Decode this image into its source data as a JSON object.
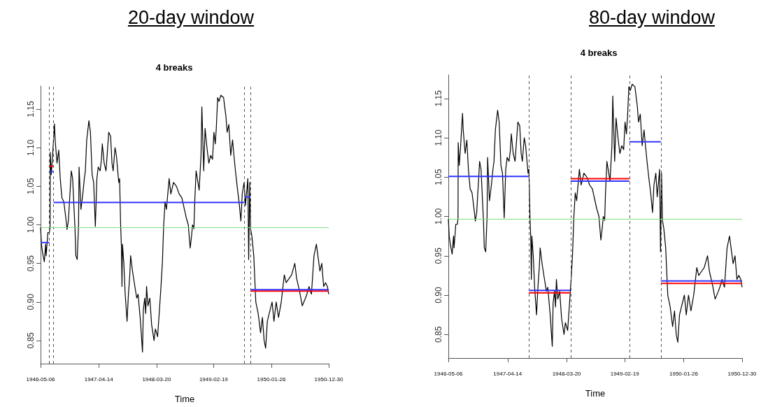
{
  "chart_data": [
    {
      "type": "line",
      "title": "20-day window",
      "subtitle": "4 breaks",
      "xlabel": "Time",
      "xlim": [
        "1946-05-06",
        "1950-12-30"
      ],
      "xticks": [
        "1946-05-06",
        "1947-04-14",
        "1948-03-20",
        "1949-02-19",
        "1950-01-26",
        "1950-12-30"
      ],
      "ylim": [
        0.82,
        1.18
      ],
      "yticks": [
        {
          "value": 0.85,
          "label": "0.85"
        },
        {
          "value": 0.9,
          "label": "0.90"
        },
        {
          "value": 0.95,
          "label": "0.95"
        },
        {
          "value": 1.0,
          "label": "1.00"
        },
        {
          "value": 1.05,
          "label": "1.05"
        },
        {
          "value": 1.1,
          "label": "1.10"
        },
        {
          "value": 1.15,
          "label": "1.15"
        }
      ],
      "ref_lines": [
        {
          "axis": "x",
          "value": "1946-06-27",
          "color": "#555555",
          "line_style": "dashed"
        },
        {
          "axis": "x",
          "value": "1946-07-22",
          "color": "#555555",
          "line_style": "dashed"
        },
        {
          "axis": "x",
          "value": "1949-08-21",
          "color": "#555555",
          "line_style": "dashed"
        },
        {
          "axis": "x",
          "value": "1949-09-24",
          "color": "#555555",
          "line_style": "dashed"
        },
        {
          "axis": "y",
          "value": 0.997,
          "color": "#80e080",
          "line_style": "solid"
        }
      ],
      "series": [
        {
          "color": "#000000",
          "x": [
            "1946-05-06",
            "1946-05-11",
            "1946-05-17",
            "1946-05-28",
            "1946-06-05",
            "1946-06-08",
            "1946-06-18",
            "1946-06-27",
            "1946-07-01",
            "1946-07-02",
            "1946-07-08",
            "1946-07-16",
            "1946-07-27",
            "1946-07-31",
            "1946-08-11",
            "1946-08-21",
            "1946-08-30",
            "1946-09-09",
            "1946-09-20",
            "1946-10-04",
            "1946-10-09",
            "1946-10-17",
            "1946-11-03",
            "1946-11-11",
            "1946-11-25",
            "1946-11-30",
            "1946-12-08",
            "1946-12-16",
            "1946-12-19",
            "1946-12-30",
            "1947-01-10",
            "1947-01-19",
            "1947-01-25",
            "1947-02-02",
            "1947-02-15",
            "1947-02-24",
            "1947-03-06",
            "1947-03-15",
            "1947-03-25",
            "1947-04-03",
            "1947-04-11",
            "1947-04-22",
            "1947-04-30",
            "1947-05-05",
            "1947-05-16",
            "1947-05-27",
            "1947-06-12",
            "1947-06-23",
            "1947-07-01",
            "1947-07-08",
            "1947-07-19",
            "1947-07-27",
            "1947-08-10",
            "1947-08-15",
            "1947-08-21",
            "1947-08-26",
            "1947-08-29",
            "1947-09-01",
            "1947-09-09",
            "1947-09-17",
            "1947-09-28",
            "1947-10-06",
            "1947-10-14",
            "1947-10-19",
            "1947-10-30",
            "1947-11-13",
            "1947-11-24",
            "1947-12-02",
            "1947-12-16",
            "1947-12-28",
            "1948-01-02",
            "1948-01-10",
            "1948-01-16",
            "1948-01-21",
            "1948-01-29",
            "1948-02-09",
            "1948-02-20",
            "1948-03-05",
            "1948-03-13",
            "1948-03-26",
            "1948-04-06",
            "1948-04-15",
            "1948-04-23",
            "1948-05-01",
            "1948-05-09",
            "1948-05-17",
            "1948-06-02",
            "1948-06-12",
            "1948-06-28",
            "1948-07-15",
            "1948-07-31",
            "1948-08-16",
            "1948-09-10",
            "1948-09-23",
            "1948-10-04",
            "1948-10-12",
            "1948-10-18",
            "1948-10-26",
            "1948-10-31",
            "1948-11-08",
            "1948-11-26",
            "1948-12-07",
            "1948-12-12",
            "1948-12-23",
            "1948-12-31",
            "1949-01-11",
            "1949-01-22",
            "1949-02-02",
            "1949-02-13",
            "1949-02-21",
            "1949-03-01",
            "1949-03-07",
            "1949-03-15",
            "1949-03-23",
            "1949-04-03",
            "1949-04-19",
            "1949-05-03",
            "1949-05-10",
            "1949-05-20",
            "1949-05-31",
            "1949-06-11",
            "1949-06-19",
            "1949-06-28",
            "1949-07-08",
            "1949-07-19",
            "1949-07-30",
            "1949-08-07",
            "1949-08-18",
            "1949-08-26",
            "1949-09-09",
            "1949-09-14",
            "1949-09-20",
            "1949-09-25",
            "1949-10-03",
            "1949-10-14",
            "1949-10-26",
            "1949-11-09",
            "1949-11-23",
            "1949-12-04",
            "1949-12-14",
            "1949-12-23",
            "1950-01-02",
            "1950-01-13",
            "1950-01-30",
            "1950-02-10",
            "1950-02-23",
            "1950-03-09",
            "1950-03-25",
            "1950-04-12",
            "1950-04-23",
            "1950-05-09",
            "1950-05-25",
            "1950-06-13",
            "1950-06-24",
            "1950-07-10",
            "1950-07-27",
            "1950-08-15",
            "1950-08-23",
            "1950-09-05",
            "1950-09-19",
            "1950-10-04",
            "1950-10-18",
            "1950-11-08",
            "1950-11-19",
            "1950-11-30",
            "1950-12-11",
            "1950-12-22",
            "1950-12-30"
          ],
          "values": [
            0.997,
            0.975,
            0.965,
            0.952,
            0.975,
            0.96,
            0.99,
            0.99,
            0.997,
            1.094,
            1.065,
            1.09,
            1.131,
            1.11,
            1.08,
            1.097,
            1.06,
            1.035,
            1.03,
            1.005,
            0.994,
            1.005,
            1.07,
            1.06,
            0.995,
            0.96,
            0.955,
            1.0,
            1.075,
            1.02,
            1.04,
            1.06,
            1.07,
            1.11,
            1.135,
            1.12,
            1.065,
            1.055,
            0.998,
            1.06,
            1.075,
            1.07,
            1.085,
            1.105,
            1.08,
            1.07,
            1.12,
            1.115,
            1.08,
            1.07,
            1.1,
            1.09,
            1.055,
            1.06,
            1.0,
            0.97,
            0.92,
            0.975,
            0.95,
            0.91,
            0.875,
            0.91,
            0.935,
            0.96,
            0.94,
            0.92,
            0.905,
            0.91,
            0.875,
            0.835,
            0.89,
            0.905,
            0.885,
            0.92,
            0.895,
            0.905,
            0.87,
            0.85,
            0.865,
            0.855,
            0.89,
            0.92,
            0.95,
            1.0,
            1.03,
            1.02,
            1.06,
            1.04,
            1.055,
            1.05,
            1.04,
            1.035,
            1.01,
            1.0,
            0.97,
            0.985,
            1.0,
            0.995,
            1.03,
            1.07,
            1.045,
            1.09,
            1.153,
            1.07,
            1.125,
            1.1,
            1.08,
            1.09,
            1.085,
            1.12,
            1.105,
            1.125,
            1.165,
            1.16,
            1.168,
            1.165,
            1.14,
            1.12,
            1.13,
            1.09,
            1.11,
            1.09,
            1.07,
            1.05,
            1.03,
            1.005,
            1.04,
            1.055,
            1.025,
            1.06,
            0.955,
            1.055,
            0.995,
            0.985,
            0.96,
            0.9,
            0.885,
            0.86,
            0.88,
            0.85,
            0.84,
            0.875,
            0.885,
            0.9,
            0.875,
            0.9,
            0.88,
            0.9,
            0.935,
            0.925,
            0.93,
            0.935,
            0.95,
            0.93,
            0.915,
            0.895,
            0.905,
            0.91,
            0.92,
            0.91,
            0.96,
            0.975,
            0.94,
            0.95,
            0.92,
            0.925,
            0.92,
            0.91
          ]
        },
        {
          "color": "#ff0000",
          "x": [
            "1946-06-27",
            "1946-07-22"
          ],
          "values": [
            1.076,
            1.076
          ]
        },
        {
          "color": "#ff0000",
          "x": [
            "1949-09-24",
            "1950-12-30"
          ],
          "values": [
            0.914,
            0.914
          ]
        },
        {
          "color": "#3333ff",
          "x": [
            "1946-05-06",
            "1946-06-27"
          ],
          "values": [
            0.977,
            0.977
          ]
        },
        {
          "color": "#3333ff",
          "x": [
            "1946-06-27",
            "1946-07-22"
          ],
          "values": [
            1.069,
            1.069
          ]
        },
        {
          "color": "#3333ff",
          "x": [
            "1946-07-22",
            "1949-08-21"
          ],
          "values": [
            1.029,
            1.029
          ]
        },
        {
          "color": "#3333ff",
          "x": [
            "1949-08-21",
            "1949-09-24"
          ],
          "values": [
            1.036,
            1.036
          ]
        },
        {
          "color": "#3333ff",
          "x": [
            "1949-09-24",
            "1950-12-30"
          ],
          "values": [
            0.916,
            0.916
          ]
        }
      ]
    },
    {
      "type": "line",
      "title": "80-day window",
      "subtitle": "4 breaks",
      "xlabel": "Time",
      "xlim": [
        "1946-05-06",
        "1950-12-30"
      ],
      "xticks": [
        "1946-05-06",
        "1947-04-14",
        "1948-03-20",
        "1949-02-19",
        "1950-01-26",
        "1950-12-30"
      ],
      "ylim": [
        0.82,
        1.18
      ],
      "yticks": [
        {
          "value": 0.85,
          "label": "0.85"
        },
        {
          "value": 0.9,
          "label": "0.90"
        },
        {
          "value": 0.95,
          "label": "0.95"
        },
        {
          "value": 1.0,
          "label": "1.00"
        },
        {
          "value": 1.05,
          "label": "1.05"
        },
        {
          "value": 1.1,
          "label": "1.10"
        },
        {
          "value": 1.15,
          "label": "1.15"
        }
      ],
      "ref_lines": [
        {
          "axis": "x",
          "value": "1947-08-14",
          "color": "#555555",
          "line_style": "dashed"
        },
        {
          "axis": "x",
          "value": "1948-04-12",
          "color": "#555555",
          "line_style": "dashed"
        },
        {
          "axis": "x",
          "value": "1949-03-18",
          "color": "#555555",
          "line_style": "dashed"
        },
        {
          "axis": "x",
          "value": "1949-09-16",
          "color": "#555555",
          "line_style": "dashed"
        },
        {
          "axis": "y",
          "value": 0.997,
          "color": "#80e080",
          "line_style": "solid"
        }
      ],
      "series": [
        {
          "color": "#000000",
          "x": [
            "1946-05-06",
            "1946-05-11",
            "1946-05-17",
            "1946-05-28",
            "1946-06-05",
            "1946-06-08",
            "1946-06-18",
            "1946-06-27",
            "1946-07-01",
            "1946-07-02",
            "1946-07-08",
            "1946-07-16",
            "1946-07-27",
            "1946-07-31",
            "1946-08-11",
            "1946-08-21",
            "1946-08-30",
            "1946-09-09",
            "1946-09-20",
            "1946-10-04",
            "1946-10-09",
            "1946-10-17",
            "1946-11-03",
            "1946-11-11",
            "1946-11-25",
            "1946-11-30",
            "1946-12-08",
            "1946-12-16",
            "1946-12-19",
            "1946-12-30",
            "1947-01-10",
            "1947-01-19",
            "1947-01-25",
            "1947-02-02",
            "1947-02-15",
            "1947-02-24",
            "1947-03-06",
            "1947-03-15",
            "1947-03-25",
            "1947-04-03",
            "1947-04-11",
            "1947-04-22",
            "1947-04-30",
            "1947-05-05",
            "1947-05-16",
            "1947-05-27",
            "1947-06-12",
            "1947-06-23",
            "1947-07-01",
            "1947-07-08",
            "1947-07-19",
            "1947-07-27",
            "1947-08-10",
            "1947-08-15",
            "1947-08-21",
            "1947-08-26",
            "1947-08-29",
            "1947-09-01",
            "1947-09-09",
            "1947-09-17",
            "1947-09-28",
            "1947-10-06",
            "1947-10-14",
            "1947-10-19",
            "1947-10-30",
            "1947-11-13",
            "1947-11-24",
            "1947-12-02",
            "1947-12-16",
            "1947-12-28",
            "1948-01-02",
            "1948-01-10",
            "1948-01-16",
            "1948-01-21",
            "1948-01-29",
            "1948-02-09",
            "1948-02-20",
            "1948-03-05",
            "1948-03-13",
            "1948-03-26",
            "1948-04-06",
            "1948-04-15",
            "1948-04-23",
            "1948-05-01",
            "1948-05-09",
            "1948-05-17",
            "1948-06-02",
            "1948-06-12",
            "1948-06-28",
            "1948-07-15",
            "1948-07-31",
            "1948-08-16",
            "1948-09-10",
            "1948-09-23",
            "1948-10-04",
            "1948-10-12",
            "1948-10-18",
            "1948-10-26",
            "1948-10-31",
            "1948-11-08",
            "1948-11-26",
            "1948-12-07",
            "1948-12-12",
            "1948-12-23",
            "1948-12-31",
            "1949-01-11",
            "1949-01-22",
            "1949-02-02",
            "1949-02-13",
            "1949-02-21",
            "1949-03-01",
            "1949-03-07",
            "1949-03-15",
            "1949-03-23",
            "1949-04-03",
            "1949-04-19",
            "1949-05-03",
            "1949-05-10",
            "1949-05-20",
            "1949-05-31",
            "1949-06-11",
            "1949-06-19",
            "1949-06-28",
            "1949-07-08",
            "1949-07-19",
            "1949-07-30",
            "1949-08-07",
            "1949-08-18",
            "1949-08-26",
            "1949-09-09",
            "1949-09-14",
            "1949-09-20",
            "1949-09-25",
            "1949-10-03",
            "1949-10-14",
            "1949-10-26",
            "1949-11-09",
            "1949-11-23",
            "1949-12-04",
            "1949-12-14",
            "1949-12-23",
            "1950-01-02",
            "1950-01-13",
            "1950-01-30",
            "1950-02-10",
            "1950-02-23",
            "1950-03-09",
            "1950-03-25",
            "1950-04-12",
            "1950-04-23",
            "1950-05-09",
            "1950-05-25",
            "1950-06-13",
            "1950-06-24",
            "1950-07-10",
            "1950-07-27",
            "1950-08-15",
            "1950-08-23",
            "1950-09-05",
            "1950-09-19",
            "1950-10-04",
            "1950-10-18",
            "1950-11-08",
            "1950-11-19",
            "1950-11-30",
            "1950-12-11",
            "1950-12-22",
            "1950-12-30"
          ],
          "values": [
            0.997,
            0.975,
            0.965,
            0.952,
            0.975,
            0.96,
            0.99,
            0.99,
            0.997,
            1.094,
            1.065,
            1.09,
            1.131,
            1.11,
            1.08,
            1.097,
            1.06,
            1.035,
            1.03,
            1.005,
            0.994,
            1.005,
            1.07,
            1.06,
            0.995,
            0.96,
            0.955,
            1.0,
            1.075,
            1.02,
            1.04,
            1.06,
            1.07,
            1.11,
            1.135,
            1.12,
            1.065,
            1.055,
            0.998,
            1.06,
            1.075,
            1.07,
            1.085,
            1.105,
            1.08,
            1.07,
            1.12,
            1.115,
            1.08,
            1.07,
            1.1,
            1.09,
            1.055,
            1.06,
            1.0,
            0.97,
            0.92,
            0.975,
            0.95,
            0.91,
            0.875,
            0.91,
            0.935,
            0.96,
            0.94,
            0.92,
            0.905,
            0.91,
            0.875,
            0.835,
            0.89,
            0.905,
            0.885,
            0.92,
            0.895,
            0.905,
            0.87,
            0.85,
            0.865,
            0.855,
            0.89,
            0.92,
            0.95,
            1.0,
            1.03,
            1.02,
            1.06,
            1.04,
            1.055,
            1.05,
            1.04,
            1.035,
            1.01,
            1.0,
            0.97,
            0.985,
            1.0,
            0.995,
            1.03,
            1.07,
            1.045,
            1.09,
            1.153,
            1.07,
            1.125,
            1.1,
            1.08,
            1.09,
            1.085,
            1.12,
            1.105,
            1.125,
            1.165,
            1.16,
            1.168,
            1.165,
            1.14,
            1.12,
            1.13,
            1.09,
            1.11,
            1.09,
            1.07,
            1.05,
            1.03,
            1.005,
            1.04,
            1.055,
            1.025,
            1.06,
            0.955,
            1.055,
            0.995,
            0.985,
            0.96,
            0.9,
            0.885,
            0.86,
            0.88,
            0.85,
            0.84,
            0.875,
            0.885,
            0.9,
            0.875,
            0.9,
            0.88,
            0.9,
            0.935,
            0.925,
            0.93,
            0.935,
            0.95,
            0.93,
            0.915,
            0.895,
            0.905,
            0.91,
            0.92,
            0.91,
            0.96,
            0.975,
            0.94,
            0.95,
            0.92,
            0.925,
            0.92,
            0.91
          ]
        },
        {
          "color": "#ff0000",
          "x": [
            "1947-08-14",
            "1948-04-12"
          ],
          "values": [
            0.903,
            0.903
          ]
        },
        {
          "color": "#ff0000",
          "x": [
            "1948-04-12",
            "1949-03-18"
          ],
          "values": [
            1.048,
            1.048
          ]
        },
        {
          "color": "#ff0000",
          "x": [
            "1949-09-16",
            "1950-12-30"
          ],
          "values": [
            0.915,
            0.915
          ]
        },
        {
          "color": "#3333ff",
          "x": [
            "1946-05-06",
            "1947-08-14"
          ],
          "values": [
            1.051,
            1.051
          ]
        },
        {
          "color": "#3333ff",
          "x": [
            "1947-08-14",
            "1948-04-12"
          ],
          "values": [
            0.906,
            0.906
          ]
        },
        {
          "color": "#3333ff",
          "x": [
            "1948-04-12",
            "1949-03-18"
          ],
          "values": [
            1.045,
            1.045
          ]
        },
        {
          "color": "#3333ff",
          "x": [
            "1949-03-18",
            "1949-09-16"
          ],
          "values": [
            1.095,
            1.095
          ]
        },
        {
          "color": "#3333ff",
          "x": [
            "1949-09-16",
            "1950-12-30"
          ],
          "values": [
            0.918,
            0.918
          ]
        }
      ]
    }
  ]
}
